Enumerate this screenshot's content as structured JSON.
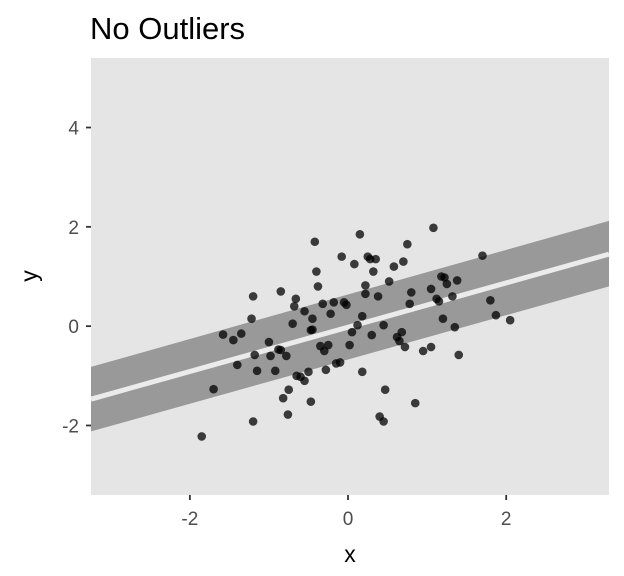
{
  "chart_data": {
    "type": "scatter",
    "title": "No Outliers",
    "xlabel": "x",
    "ylabel": "y",
    "xlim": [
      -3.25,
      3.3
    ],
    "ylim": [
      -3.4,
      5.4
    ],
    "x_ticks": [
      -2,
      0,
      2
    ],
    "y_ticks": [
      -2,
      0,
      2,
      4
    ],
    "grid": false,
    "background": "#e5e5e5",
    "point_color": "#000000",
    "point_alpha": 0.75,
    "band_color": "#999999",
    "fit_line_color": "#ebebeb",
    "fit": {
      "line": [
        [
          -3.25,
          -1.47
        ],
        [
          3.3,
          1.45
        ]
      ],
      "band_upper": [
        [
          -3.25,
          -0.82
        ],
        [
          3.3,
          2.12
        ]
      ],
      "band_lower": [
        [
          -3.25,
          -2.12
        ],
        [
          3.3,
          0.8
        ]
      ]
    },
    "points": [
      [
        -1.85,
        -2.22
      ],
      [
        -1.7,
        -1.27
      ],
      [
        -1.58,
        -0.17
      ],
      [
        -1.45,
        -0.28
      ],
      [
        -1.4,
        -0.78
      ],
      [
        -1.35,
        -0.15
      ],
      [
        -1.2,
        0.6
      ],
      [
        -1.22,
        0.15
      ],
      [
        -1.18,
        -0.58
      ],
      [
        -1.15,
        -0.9
      ],
      [
        -1.2,
        -1.92
      ],
      [
        -1.0,
        -0.32
      ],
      [
        -0.98,
        -0.6
      ],
      [
        -0.92,
        -0.9
      ],
      [
        -0.88,
        -0.47
      ],
      [
        -0.85,
        -0.48
      ],
      [
        -0.85,
        0.7
      ],
      [
        -0.82,
        -1.45
      ],
      [
        -0.78,
        -0.6
      ],
      [
        -0.76,
        -1.78
      ],
      [
        -0.75,
        -1.28
      ],
      [
        -0.7,
        0.05
      ],
      [
        -0.68,
        0.4
      ],
      [
        -0.66,
        0.55
      ],
      [
        -0.65,
        -1.0
      ],
      [
        -0.6,
        -1.02
      ],
      [
        -0.55,
        0.3
      ],
      [
        -0.55,
        -1.1
      ],
      [
        -0.5,
        -0.92
      ],
      [
        -0.47,
        -0.08
      ],
      [
        -0.45,
        -0.07
      ],
      [
        -0.47,
        -1.52
      ],
      [
        -0.45,
        0.15
      ],
      [
        -0.42,
        1.7
      ],
      [
        -0.4,
        1.1
      ],
      [
        -0.38,
        0.8
      ],
      [
        -0.35,
        -0.4
      ],
      [
        -0.32,
        0.45
      ],
      [
        -0.3,
        -0.5
      ],
      [
        -0.28,
        -0.88
      ],
      [
        -0.25,
        -0.38
      ],
      [
        -0.22,
        0.25
      ],
      [
        -0.18,
        0.48
      ],
      [
        -0.15,
        -0.75
      ],
      [
        -0.1,
        -0.73
      ],
      [
        -0.08,
        1.4
      ],
      [
        -0.05,
        0.48
      ],
      [
        -0.02,
        0.43
      ],
      [
        0.02,
        -0.38
      ],
      [
        0.05,
        -0.12
      ],
      [
        0.08,
        1.25
      ],
      [
        0.12,
        0.02
      ],
      [
        0.15,
        1.85
      ],
      [
        0.18,
        0.2
      ],
      [
        0.18,
        -0.92
      ],
      [
        0.22,
        0.82
      ],
      [
        0.22,
        0.65
      ],
      [
        0.25,
        1.4
      ],
      [
        0.28,
        1.35
      ],
      [
        0.3,
        -0.18
      ],
      [
        0.32,
        1.1
      ],
      [
        0.35,
        1.35
      ],
      [
        0.38,
        0.6
      ],
      [
        0.4,
        -1.82
      ],
      [
        0.45,
        -1.92
      ],
      [
        0.45,
        0.02
      ],
      [
        0.47,
        -1.28
      ],
      [
        0.52,
        0.9
      ],
      [
        0.58,
        1.2
      ],
      [
        0.62,
        -0.22
      ],
      [
        0.65,
        -0.3
      ],
      [
        0.68,
        -0.12
      ],
      [
        0.7,
        1.3
      ],
      [
        0.72,
        -0.42
      ],
      [
        0.75,
        1.65
      ],
      [
        0.78,
        0.45
      ],
      [
        0.8,
        0.68
      ],
      [
        0.85,
        -1.55
      ],
      [
        0.95,
        -0.5
      ],
      [
        1.05,
        0.75
      ],
      [
        1.05,
        -0.42
      ],
      [
        1.08,
        1.98
      ],
      [
        1.12,
        0.55
      ],
      [
        1.15,
        0.5
      ],
      [
        1.18,
        1.0
      ],
      [
        1.2,
        0.15
      ],
      [
        1.22,
        0.98
      ],
      [
        1.25,
        0.85
      ],
      [
        1.32,
        0.6
      ],
      [
        1.35,
        -0.02
      ],
      [
        1.38,
        0.92
      ],
      [
        1.4,
        -0.58
      ],
      [
        1.7,
        1.42
      ],
      [
        1.8,
        0.52
      ],
      [
        1.87,
        0.22
      ],
      [
        2.05,
        0.12
      ]
    ]
  }
}
